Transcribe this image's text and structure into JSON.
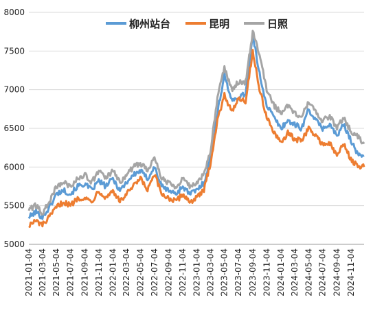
{
  "chart_data": {
    "type": "line",
    "title": "",
    "xlabel": "",
    "ylabel": "",
    "ylim": [
      5000,
      8000
    ],
    "yticks": [
      5000,
      5500,
      6000,
      6500,
      7000,
      7500,
      8000
    ],
    "grid": true,
    "legend_position": "top-center",
    "x_tick_labels": [
      "2021-01-04",
      "2021-03-04",
      "2021-05-04",
      "2021-07-04",
      "2021-09-04",
      "2021-11-04",
      "2022-01-04",
      "2022-03-04",
      "2022-05-04",
      "2022-07-04",
      "2022-09-04",
      "2022-11-04",
      "2023-01-04",
      "2023-03-04",
      "2023-05-04",
      "2023-07-04",
      "2023-09-04",
      "2023-11-04",
      "2024-01-04",
      "2024-03-04",
      "2024-05-04",
      "2024-07-04",
      "2024-09-04",
      "2024-11-04"
    ],
    "x": [
      "2021-01-04",
      "2021-02-04",
      "2021-03-04",
      "2021-04-04",
      "2021-05-04",
      "2021-06-04",
      "2021-07-04",
      "2021-08-04",
      "2021-09-04",
      "2021-10-04",
      "2021-11-04",
      "2021-12-04",
      "2022-01-04",
      "2022-02-04",
      "2022-03-04",
      "2022-04-04",
      "2022-05-04",
      "2022-06-04",
      "2022-07-04",
      "2022-08-04",
      "2022-09-04",
      "2022-10-04",
      "2022-11-04",
      "2022-12-04",
      "2023-01-04",
      "2023-02-04",
      "2023-03-04",
      "2023-04-04",
      "2023-05-04",
      "2023-06-04",
      "2023-07-04",
      "2023-08-04",
      "2023-09-04",
      "2023-10-04",
      "2023-11-04",
      "2023-12-04",
      "2024-01-04",
      "2024-02-04",
      "2024-03-04",
      "2024-04-04",
      "2024-05-04",
      "2024-06-04",
      "2024-07-04",
      "2024-08-04",
      "2024-09-04",
      "2024-10-04",
      "2024-11-04",
      "2024-12-04",
      "2024-12-31"
    ],
    "series": [
      {
        "name": "柳州站台",
        "color": "#5b9bd5",
        "values": [
          5350,
          5420,
          5350,
          5480,
          5650,
          5700,
          5650,
          5750,
          5780,
          5700,
          5820,
          5750,
          5850,
          5700,
          5800,
          5900,
          5950,
          5850,
          6000,
          5750,
          5700,
          5650,
          5750,
          5650,
          5700,
          5800,
          6100,
          6700,
          7200,
          6850,
          6900,
          6950,
          7700,
          7200,
          6800,
          6650,
          6500,
          6600,
          6550,
          6500,
          6750,
          6600,
          6500,
          6550,
          6400,
          6550,
          6350,
          6150,
          6150
        ]
      },
      {
        "name": "昆明",
        "color": "#ed7d31",
        "values": [
          5250,
          5300,
          5250,
          5350,
          5480,
          5550,
          5500,
          5600,
          5600,
          5550,
          5700,
          5600,
          5700,
          5550,
          5650,
          5750,
          5850,
          5700,
          5900,
          5650,
          5600,
          5550,
          5650,
          5550,
          5600,
          5700,
          6050,
          6600,
          6950,
          6700,
          6900,
          6850,
          7500,
          7000,
          6650,
          6450,
          6300,
          6450,
          6350,
          6350,
          6500,
          6400,
          6300,
          6300,
          6150,
          6300,
          6100,
          6000,
          6000
        ]
      },
      {
        "name": "日照",
        "color": "#a5a5a5",
        "values": [
          5450,
          5500,
          5400,
          5550,
          5750,
          5800,
          5750,
          5850,
          5900,
          5800,
          5950,
          5850,
          5950,
          5800,
          5900,
          6000,
          6050,
          5950,
          6150,
          5850,
          5800,
          5750,
          5850,
          5750,
          5800,
          5900,
          6200,
          6900,
          7300,
          7000,
          7100,
          7100,
          7750,
          7450,
          7000,
          6800,
          6700,
          6800,
          6700,
          6650,
          6850,
          6700,
          6600,
          6650,
          6500,
          6650,
          6450,
          6400,
          6300
        ]
      }
    ]
  }
}
